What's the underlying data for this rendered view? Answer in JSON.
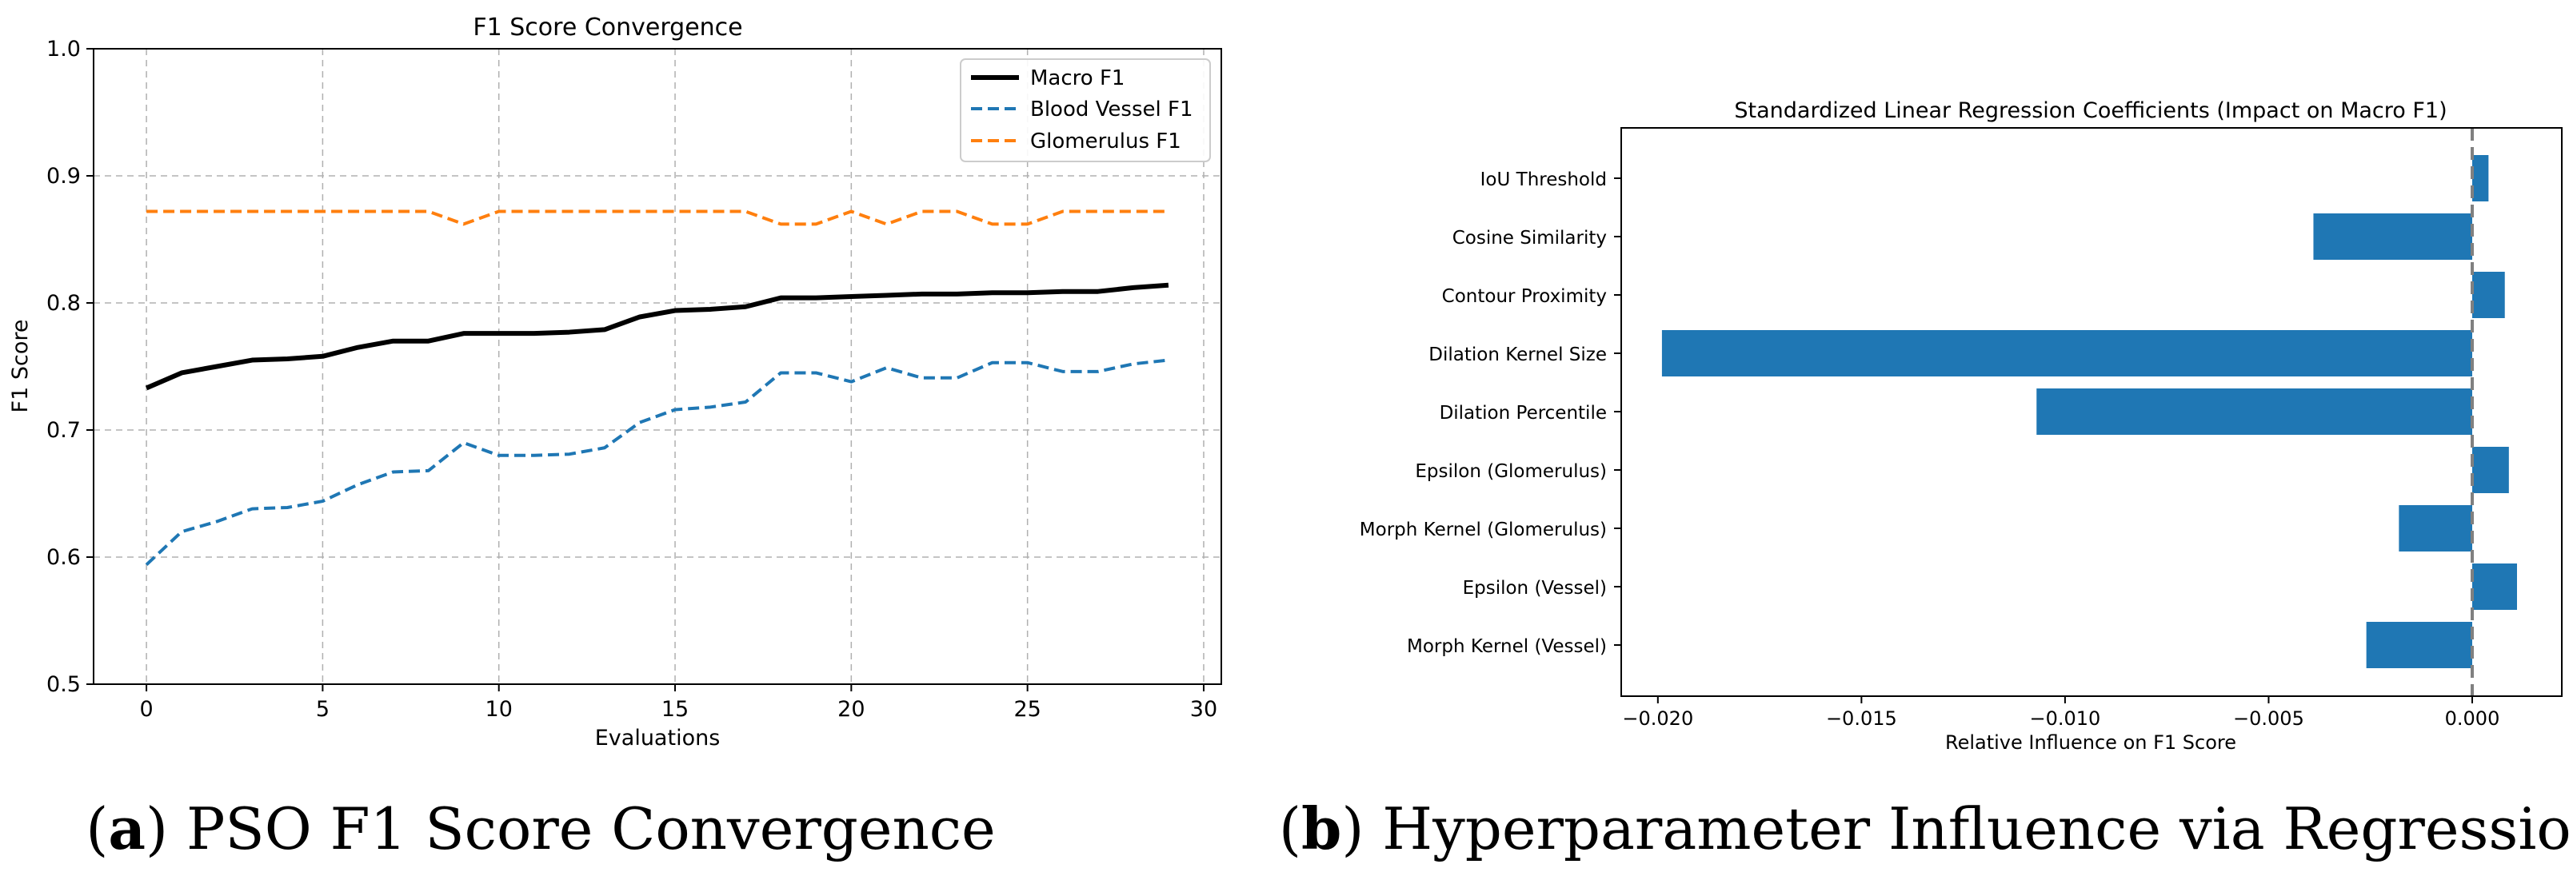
{
  "chart_data": [
    {
      "type": "line",
      "title": "F1 Score Convergence",
      "xlabel": "Evaluations",
      "ylabel": "F1 Score",
      "xlim": [
        -1.5,
        30.5
      ],
      "ylim": [
        0.5,
        1.0
      ],
      "xticks": [
        0,
        5,
        10,
        15,
        20,
        25,
        30
      ],
      "xtick_labels": [
        "0",
        "5",
        "10",
        "15",
        "20",
        "25",
        "30"
      ],
      "yticks": [
        0.5,
        0.6,
        0.7,
        0.8,
        0.9,
        1.0
      ],
      "ytick_labels": [
        "0.5",
        "0.6",
        "0.7",
        "0.8",
        "0.9",
        "1.0"
      ],
      "grid": true,
      "legend": "top-right",
      "x": [
        0,
        1,
        2,
        3,
        4,
        5,
        6,
        7,
        8,
        9,
        10,
        11,
        12,
        13,
        14,
        15,
        16,
        17,
        18,
        19,
        20,
        21,
        22,
        23,
        24,
        25,
        26,
        27,
        28,
        29
      ],
      "series": [
        {
          "name": "Macro F1",
          "color": "#000000",
          "style": "solid",
          "values": [
            0.733,
            0.745,
            0.75,
            0.755,
            0.756,
            0.758,
            0.765,
            0.77,
            0.77,
            0.776,
            0.776,
            0.776,
            0.777,
            0.779,
            0.789,
            0.794,
            0.795,
            0.797,
            0.804,
            0.804,
            0.805,
            0.806,
            0.807,
            0.807,
            0.808,
            0.808,
            0.809,
            0.809,
            0.812,
            0.814
          ]
        },
        {
          "name": "Blood Vessel F1",
          "color": "#1f77b4",
          "style": "dashed",
          "values": [
            0.594,
            0.62,
            0.628,
            0.638,
            0.639,
            0.644,
            0.657,
            0.667,
            0.668,
            0.69,
            0.68,
            0.68,
            0.681,
            0.686,
            0.706,
            0.716,
            0.718,
            0.722,
            0.745,
            0.745,
            0.738,
            0.749,
            0.741,
            0.741,
            0.753,
            0.753,
            0.746,
            0.746,
            0.752,
            0.755
          ]
        },
        {
          "name": "Glomerulus F1",
          "color": "#ff7f0e",
          "style": "dashed",
          "values": [
            0.872,
            0.872,
            0.872,
            0.872,
            0.872,
            0.872,
            0.872,
            0.872,
            0.872,
            0.862,
            0.872,
            0.872,
            0.872,
            0.872,
            0.872,
            0.872,
            0.872,
            0.872,
            0.862,
            0.862,
            0.872,
            0.862,
            0.872,
            0.872,
            0.862,
            0.862,
            0.872,
            0.872,
            0.872,
            0.872
          ]
        }
      ],
      "caption_letter": "a",
      "caption_text": " PSO F1 Score Convergence"
    },
    {
      "type": "bar",
      "orientation": "horizontal",
      "title": "Standardized Linear Regression Coefficients (Impact on Macro F1)",
      "xlabel": "Relative Influence on F1 Score",
      "ylabel": "",
      "xlim": [
        -0.0209,
        0.0022
      ],
      "xticks": [
        -0.02,
        -0.015,
        -0.01,
        -0.005,
        0.0
      ],
      "xtick_labels": [
        "−0.020",
        "−0.015",
        "−0.010",
        "−0.005",
        "0.000"
      ],
      "bar_color": "#1f77b4",
      "zero_line_color": "#808080",
      "categories": [
        "IoU Threshold",
        "Cosine Similarity",
        "Contour Proximity",
        "Dilation Kernel Size",
        "Dilation Percentile",
        "Epsilon (Glomerulus)",
        "Morph Kernel (Glomerulus)",
        "Epsilon (Vessel)",
        "Morph Kernel (Vessel)"
      ],
      "values": [
        0.0004,
        -0.0039,
        0.0008,
        -0.0199,
        -0.0107,
        0.0009,
        -0.0018,
        0.0011,
        -0.0026
      ],
      "caption_letter": "b",
      "caption_text": " Hyperparameter Influence via Regression"
    }
  ]
}
